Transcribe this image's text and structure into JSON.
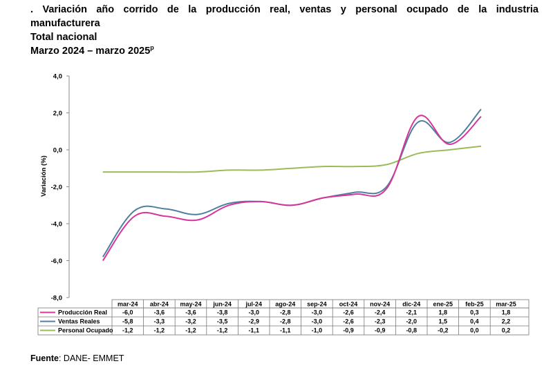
{
  "title": {
    "prefix": ".",
    "line1": "Variación año corrido de la producción real, ventas y personal ocupado de la industria",
    "line2": "manufacturera",
    "line3": "Total nacional",
    "line4": "Marzo 2024 – marzo 2025",
    "line4_sup": "p"
  },
  "footer": {
    "label": "Fuente",
    "text": ": DANE- EMMET"
  },
  "chart_data": {
    "type": "line",
    "ylabel": "Variación (%)",
    "xlabel": "",
    "ylim": [
      -8.0,
      4.0
    ],
    "yticks": [
      4.0,
      2.0,
      0.0,
      -2.0,
      -4.0,
      -6.0,
      -8.0
    ],
    "ytick_labels": [
      "4,0",
      "2,0",
      "0,0",
      "-2,0",
      "-4,0",
      "-6,0",
      "-8,0"
    ],
    "categories": [
      "mar-24",
      "abr-24",
      "may-24",
      "jun-24",
      "jul-24",
      "ago-24",
      "sep-24",
      "oct-24",
      "nov-24",
      "dic-24",
      "ene-25",
      "feb-25",
      "mar-25"
    ],
    "series": [
      {
        "name": "Producción Real",
        "color": "#d6359c",
        "values": [
          -6.0,
          -3.6,
          -3.6,
          -3.8,
          -3.0,
          -2.8,
          -3.0,
          -2.6,
          -2.4,
          -2.1,
          1.8,
          0.3,
          1.8
        ],
        "labels": [
          "-6,0",
          "-3,6",
          "-3,6",
          "-3,8",
          "-3,0",
          "-2,8",
          "-3,0",
          "-2,6",
          "-2,4",
          "-2,1",
          "1,8",
          "0,3",
          "1,8"
        ]
      },
      {
        "name": "Ventas Reales",
        "color": "#4f7f9f",
        "values": [
          -5.8,
          -3.3,
          -3.2,
          -3.5,
          -2.9,
          -2.8,
          -3.0,
          -2.6,
          -2.3,
          -2.0,
          1.5,
          0.4,
          2.2
        ],
        "labels": [
          "-5,8",
          "-3,3",
          "-3,2",
          "-3,5",
          "-2,9",
          "-2,8",
          "-3,0",
          "-2,6",
          "-2,3",
          "-2,0",
          "1,5",
          "0,4",
          "2,2"
        ]
      },
      {
        "name": "Personal Ocupado",
        "color": "#9bbb59",
        "values": [
          -1.2,
          -1.2,
          -1.2,
          -1.2,
          -1.1,
          -1.1,
          -1.0,
          -0.9,
          -0.9,
          -0.8,
          -0.2,
          0.0,
          0.2
        ],
        "labels": [
          "-1,2",
          "-1,2",
          "-1,2",
          "-1,2",
          "-1,1",
          "-1,1",
          "-1,0",
          "-0,9",
          "-0,9",
          "-0,8",
          "-0,2",
          "0,0",
          "0,2"
        ]
      }
    ],
    "grid": false,
    "legend": "table-below"
  }
}
